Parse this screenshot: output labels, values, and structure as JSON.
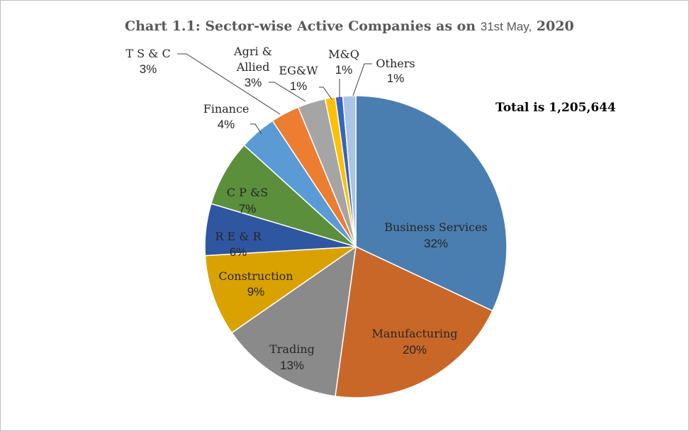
{
  "title": {
    "main": "Chart 1.1: Sector-wise Active Companies as on ",
    "date": "31st May,",
    "year": " 2020"
  },
  "total_note": "Total is 1,205,644",
  "chart_data": {
    "type": "pie",
    "title": "Chart 1.1: Sector-wise Active Companies as on 31st May, 2020",
    "total": 1205644,
    "slices": [
      {
        "label": "Business Services",
        "pct_label": "32%",
        "value": 32.3,
        "color": "#4a7eb0"
      },
      {
        "label": "Manufacturing",
        "pct_label": "20%",
        "value": 20.4,
        "color": "#c96729"
      },
      {
        "label": "Trading",
        "pct_label": "13%",
        "value": 13.3,
        "color": "#8a8a8a"
      },
      {
        "label": "Construction",
        "pct_label": "9%",
        "value": 8.8,
        "color": "#d9a200"
      },
      {
        "label": "R E & R",
        "pct_label": "6%",
        "value": 5.6,
        "color": "#2f56a0"
      },
      {
        "label": "C P &S",
        "pct_label": "7%",
        "value": 7.2,
        "color": "#5b8f3c"
      },
      {
        "label": "Finance",
        "pct_label": "4%",
        "value": 4.0,
        "color": "#5b9bd5"
      },
      {
        "label": "T S  & C",
        "pct_label": "3%",
        "value": 3.1,
        "color": "#ed7d31"
      },
      {
        "label": "Agri & Allied",
        "pct_label": "3%",
        "value": 3.0,
        "color": "#a5a5a5"
      },
      {
        "label": "EG&W",
        "pct_label": "1%",
        "value": 1.1,
        "color": "#ffc000"
      },
      {
        "label": "M&Q",
        "pct_label": "1%",
        "value": 0.8,
        "color": "#3565c1"
      },
      {
        "label": "Others",
        "pct_label": "1%",
        "value": 1.4,
        "color": "#a9c4e6"
      }
    ]
  }
}
